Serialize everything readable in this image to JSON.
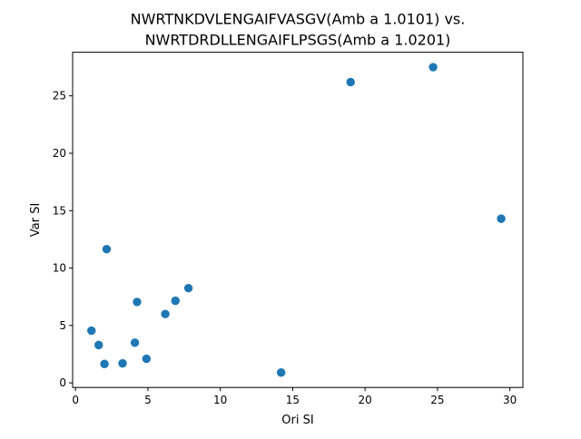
{
  "chart_data": {
    "type": "scatter",
    "title_lines": [
      "NWRTNKDVLENGAIFVASGV(Amb a 1.0101) vs.",
      "NWRTDRDLLENGAIFLPSGS(Amb a 1.0201)"
    ],
    "xlabel": "Ori SI",
    "ylabel": "Var SI",
    "xlim": [
      -0.2,
      30.9
    ],
    "ylim": [
      -0.4,
      28.8
    ],
    "x_ticks": [
      0,
      5,
      10,
      15,
      20,
      25,
      30
    ],
    "y_ticks": [
      0,
      5,
      10,
      15,
      20,
      25
    ],
    "grid": false,
    "marker_color": "#1f77b4",
    "points": [
      {
        "x": 1.1,
        "y": 4.55
      },
      {
        "x": 1.6,
        "y": 3.3
      },
      {
        "x": 2.0,
        "y": 1.65
      },
      {
        "x": 2.15,
        "y": 11.65
      },
      {
        "x": 3.25,
        "y": 1.7
      },
      {
        "x": 4.1,
        "y": 3.5
      },
      {
        "x": 4.25,
        "y": 7.05
      },
      {
        "x": 4.9,
        "y": 2.1
      },
      {
        "x": 6.2,
        "y": 6.0
      },
      {
        "x": 6.9,
        "y": 7.15
      },
      {
        "x": 7.8,
        "y": 8.25
      },
      {
        "x": 14.2,
        "y": 0.9
      },
      {
        "x": 19.0,
        "y": 26.2
      },
      {
        "x": 24.7,
        "y": 27.5
      },
      {
        "x": 29.4,
        "y": 14.3
      }
    ]
  }
}
